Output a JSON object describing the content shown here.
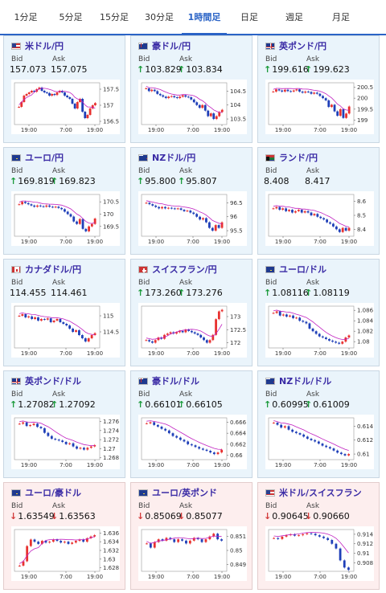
{
  "tabs": [
    {
      "label": "1分足",
      "active": false
    },
    {
      "label": "5分足",
      "active": false
    },
    {
      "label": "15分足",
      "active": false
    },
    {
      "label": "30分足",
      "active": false
    },
    {
      "label": "1時間足",
      "active": true
    },
    {
      "label": "日足",
      "active": false
    },
    {
      "label": "週足",
      "active": false
    },
    {
      "label": "月足",
      "active": false
    }
  ],
  "labels": {
    "bid": "Bid",
    "ask": "Ask"
  },
  "colors": {
    "up": "#1a9a3a",
    "down": "#d23a3a",
    "candle_up": "#e8312f",
    "candle_down": "#1f3fb8",
    "ma": "#c020c0",
    "pair": "#3a2ba5"
  },
  "cards": [
    {
      "pair": "米ドル/円",
      "flag": "us",
      "bid": "157.073",
      "ask": "157.075",
      "dir": "none",
      "chart_data": {
        "type": "candlestick",
        "x_ticks": [
          "19:00",
          "7:00",
          "19:00"
        ],
        "y_ticks": [
          "157.5",
          "157",
          "156.5"
        ],
        "ylim": [
          156.4,
          157.7
        ],
        "candles": [
          156.95,
          157.1,
          157.3,
          157.35,
          157.4,
          157.45,
          157.42,
          157.5,
          157.55,
          157.45,
          157.4,
          157.38,
          157.3,
          157.35,
          157.32,
          157.4,
          157.45,
          157.4,
          157.3,
          157.25,
          157.2,
          157.05,
          156.9,
          157.1,
          157.2,
          156.8,
          156.6,
          156.7,
          156.9,
          157.0,
          157.07
        ]
      }
    },
    {
      "pair": "豪ドル/円",
      "flag": "au",
      "bid": "103.829",
      "ask": "103.834",
      "dir": "up",
      "chart_data": {
        "type": "candlestick",
        "x_ticks": [
          "19:00",
          "7:00",
          "19:00"
        ],
        "y_ticks": [
          "104.5",
          "104",
          "103.5"
        ],
        "ylim": [
          103.3,
          104.8
        ],
        "candles": [
          104.6,
          104.5,
          104.55,
          104.5,
          104.4,
          104.35,
          104.3,
          104.25,
          104.3,
          104.32,
          104.28,
          104.25,
          104.3,
          104.35,
          104.3,
          104.28,
          104.2,
          104.1,
          104.0,
          103.9,
          104.0,
          103.8,
          103.6,
          103.7,
          103.5,
          103.6,
          103.75,
          103.83
        ]
      }
    },
    {
      "pair": "英ポンド/円",
      "flag": "gb",
      "bid": "199.616",
      "ask": "199.623",
      "dir": "up",
      "chart_data": {
        "type": "candlestick",
        "x_ticks": [
          "19:00",
          "7:00",
          "19:00"
        ],
        "y_ticks": [
          "200.5",
          "200",
          "199.5",
          "199"
        ],
        "ylim": [
          198.8,
          200.7
        ],
        "candles": [
          200.3,
          200.4,
          200.35,
          200.3,
          200.38,
          200.32,
          200.3,
          200.35,
          200.4,
          200.3,
          200.25,
          200.3,
          200.28,
          200.2,
          200.25,
          200.2,
          200.1,
          200.0,
          199.9,
          199.6,
          199.7,
          199.4,
          199.2,
          199.5,
          199.1,
          199.3,
          199.62
        ]
      }
    },
    {
      "pair": "ユーロ/円",
      "flag": "eu",
      "bid": "169.819",
      "ask": "169.823",
      "dir": "up",
      "chart_data": {
        "type": "candlestick",
        "x_ticks": [
          "19:00",
          "7:00",
          "19:00"
        ],
        "y_ticks": [
          "170.5",
          "170",
          "169.5"
        ],
        "ylim": [
          169.1,
          170.8
        ],
        "candles": [
          170.4,
          170.5,
          170.45,
          170.4,
          170.35,
          170.3,
          170.35,
          170.32,
          170.3,
          170.35,
          170.3,
          170.28,
          170.3,
          170.25,
          170.2,
          170.1,
          170.0,
          169.9,
          169.7,
          169.6,
          169.8,
          169.4,
          169.3,
          169.5,
          169.6,
          169.82
        ]
      }
    },
    {
      "pair": "NZドル/円",
      "flag": "nz",
      "bid": "95.800",
      "ask": "95.807",
      "dir": "up",
      "chart_data": {
        "type": "candlestick",
        "x_ticks": [
          "19:00",
          "7:00",
          "19:00"
        ],
        "y_ticks": [
          "96.5",
          "96",
          "95.5"
        ],
        "ylim": [
          95.3,
          96.8
        ],
        "candles": [
          96.5,
          96.45,
          96.4,
          96.35,
          96.3,
          96.35,
          96.3,
          96.32,
          96.3,
          96.28,
          96.3,
          96.25,
          96.2,
          96.22,
          96.15,
          96.1,
          96.0,
          95.9,
          95.95,
          95.8,
          95.6,
          95.5,
          95.7,
          95.6,
          95.8
        ]
      }
    },
    {
      "pair": "ランド/円",
      "flag": "za",
      "bid": "8.408",
      "ask": "8.417",
      "dir": "none",
      "chart_data": {
        "type": "candlestick",
        "x_ticks": [
          "19:00",
          "7:00",
          "19:00"
        ],
        "y_ticks": [
          "8.6",
          "8.5",
          "8.4"
        ],
        "ylim": [
          8.35,
          8.65
        ],
        "candles": [
          8.55,
          8.56,
          8.54,
          8.55,
          8.53,
          8.54,
          8.52,
          8.53,
          8.54,
          8.52,
          8.53,
          8.52,
          8.5,
          8.51,
          8.49,
          8.48,
          8.47,
          8.45,
          8.44,
          8.42,
          8.4,
          8.38,
          8.41,
          8.39,
          8.41
        ]
      }
    },
    {
      "pair": "カナダドル/円",
      "flag": "ca",
      "bid": "114.455",
      "ask": "114.461",
      "dir": "none",
      "chart_data": {
        "type": "candlestick",
        "x_ticks": [
          "19:00",
          "7:00",
          "19:00"
        ],
        "y_ticks": [
          "115",
          "114.5"
        ],
        "ylim": [
          114.0,
          115.3
        ],
        "candles": [
          115.0,
          115.05,
          114.95,
          114.98,
          114.9,
          114.95,
          114.85,
          114.9,
          114.88,
          114.92,
          114.8,
          114.85,
          114.9,
          114.8,
          114.75,
          114.7,
          114.6,
          114.5,
          114.55,
          114.4,
          114.3,
          114.2,
          114.3,
          114.4,
          114.46
        ]
      }
    },
    {
      "pair": "スイスフラン/円",
      "flag": "ch",
      "bid": "173.260",
      "ask": "173.276",
      "dir": "up",
      "chart_data": {
        "type": "candlestick",
        "x_ticks": [
          "19:00",
          "7:00",
          "19:00"
        ],
        "y_ticks": [
          "173",
          "172.5",
          "172"
        ],
        "ylim": [
          171.8,
          173.4
        ],
        "candles": [
          172.1,
          172.05,
          172.0,
          172.1,
          172.2,
          172.15,
          172.3,
          172.35,
          172.4,
          172.35,
          172.4,
          172.45,
          172.4,
          172.5,
          172.45,
          172.4,
          172.35,
          172.3,
          172.2,
          172.1,
          172.0,
          172.1,
          172.3,
          172.9,
          173.2,
          173.26
        ]
      }
    },
    {
      "pair": "ユーロ/ドル",
      "flag": "eu_us",
      "bid": "1.08116",
      "ask": "1.08119",
      "dir": "up",
      "chart_data": {
        "type": "candlestick",
        "x_ticks": [
          "19:00",
          "7:00",
          "19:00"
        ],
        "y_ticks": [
          "1.086",
          "1.084",
          "1.082",
          "1.08"
        ],
        "ylim": [
          1.0788,
          1.0868
        ],
        "candles": [
          1.0855,
          1.0858,
          1.085,
          1.0852,
          1.0848,
          1.085,
          1.0845,
          1.0846,
          1.084,
          1.0838,
          1.0835,
          1.0825,
          1.082,
          1.0815,
          1.081,
          1.0808,
          1.0805,
          1.0802,
          1.08,
          1.0798,
          1.0796,
          1.08,
          1.0808,
          1.0812
        ]
      }
    },
    {
      "pair": "英ポンド/ドル",
      "flag": "gb_us",
      "bid": "1.27082",
      "ask": "1.27092",
      "dir": "up",
      "chart_data": {
        "type": "candlestick",
        "x_ticks": [
          "19:00",
          "7:00",
          "19:00"
        ],
        "y_ticks": [
          "1.276",
          "1.274",
          "1.272",
          "1.27",
          "1.268"
        ],
        "ylim": [
          1.2676,
          1.2768
        ],
        "candles": [
          1.2755,
          1.2758,
          1.275,
          1.2752,
          1.2755,
          1.2748,
          1.2745,
          1.2735,
          1.2728,
          1.2722,
          1.272,
          1.2718,
          1.2715,
          1.271,
          1.2712,
          1.2705,
          1.27,
          1.2702,
          1.2698,
          1.2702,
          1.2705,
          1.2708
        ]
      }
    },
    {
      "pair": "豪ドル/ドル",
      "flag": "au_us",
      "bid": "0.66101",
      "ask": "0.66105",
      "dir": "up",
      "chart_data": {
        "type": "candlestick",
        "x_ticks": [
          "19:00",
          "7:00",
          "19:00"
        ],
        "y_ticks": [
          "0.666",
          "0.664",
          "0.662",
          "0.66"
        ],
        "ylim": [
          0.6592,
          0.6668
        ],
        "candles": [
          0.6658,
          0.666,
          0.6655,
          0.6652,
          0.6648,
          0.6645,
          0.664,
          0.6635,
          0.6632,
          0.6628,
          0.6625,
          0.662,
          0.6618,
          0.6615,
          0.6612,
          0.661,
          0.6608,
          0.6605,
          0.6602,
          0.6605,
          0.661
        ]
      }
    },
    {
      "pair": "NZドル/ドル",
      "flag": "nz_us",
      "bid": "0.60995",
      "ask": "0.61009",
      "dir": "up",
      "chart_data": {
        "type": "candlestick",
        "x_ticks": [
          "19:00",
          "7:00",
          "19:00"
        ],
        "y_ticks": [
          "0.614",
          "0.612",
          "0.61"
        ],
        "ylim": [
          0.6092,
          0.6152
        ],
        "candles": [
          0.6145,
          0.6142,
          0.6138,
          0.614,
          0.6135,
          0.6132,
          0.613,
          0.6128,
          0.6125,
          0.6122,
          0.612,
          0.6118,
          0.6115,
          0.6112,
          0.611,
          0.6108,
          0.6105,
          0.6102,
          0.61,
          0.6098,
          0.61
        ]
      }
    },
    {
      "pair": "ユーロ/豪ドル",
      "flag": "eu_au",
      "bid": "1.63549",
      "ask": "1.63563",
      "dir": "down",
      "bg": "down",
      "chart_data": {
        "type": "candlestick",
        "x_ticks": [
          "19:00",
          "7:00",
          "19:00"
        ],
        "y_ticks": [
          "1.636",
          "1.634",
          "1.632",
          "1.63",
          "1.628"
        ],
        "ylim": [
          1.6272,
          1.6368
        ],
        "candles": [
          1.6285,
          1.6295,
          1.633,
          1.6345,
          1.634,
          1.6335,
          1.6342,
          1.6338,
          1.634,
          1.6345,
          1.6342,
          1.6338,
          1.634,
          1.6335,
          1.6338,
          1.6342,
          1.6345,
          1.634,
          1.6348,
          1.6352,
          1.6355
        ]
      }
    },
    {
      "pair": "ユーロ/英ポンド",
      "flag": "eu_gb",
      "bid": "0.85069",
      "ask": "0.85077",
      "dir": "down",
      "bg": "down",
      "chart_data": {
        "type": "candlestick",
        "x_ticks": [
          "19:00",
          "7:00",
          "19:00"
        ],
        "y_ticks": [
          "0.851",
          "0.85",
          "0.849"
        ],
        "ylim": [
          0.8485,
          0.8515
        ],
        "candles": [
          0.8505,
          0.8502,
          0.8506,
          0.8508,
          0.8507,
          0.8509,
          0.8508,
          0.8506,
          0.8508,
          0.8507,
          0.8505,
          0.8507,
          0.8509,
          0.8508,
          0.8506,
          0.8508,
          0.851,
          0.8512,
          0.8508,
          0.8507
        ]
      }
    },
    {
      "pair": "米ドル/スイスフラン",
      "flag": "us_ch",
      "bid": "0.90645",
      "ask": "0.90660",
      "dir": "down",
      "bg": "down",
      "chart_data": {
        "type": "candlestick",
        "x_ticks": [
          "19:00",
          "7:00",
          "19:00"
        ],
        "y_ticks": [
          "0.914",
          "0.912",
          "0.91",
          "0.908"
        ],
        "ylim": [
          0.9062,
          0.915
        ],
        "candles": [
          0.9132,
          0.913,
          0.9135,
          0.9138,
          0.914,
          0.9137,
          0.9138,
          0.914,
          0.9142,
          0.9141,
          0.9138,
          0.9135,
          0.9132,
          0.9128,
          0.912,
          0.911,
          0.9085,
          0.907,
          0.9065
        ]
      }
    }
  ]
}
